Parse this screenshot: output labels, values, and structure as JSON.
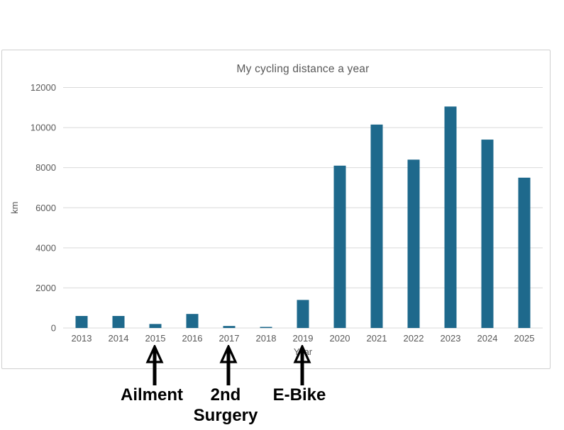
{
  "chart_data": {
    "type": "bar",
    "title": "My cycling distance a year",
    "xlabel": "Year",
    "ylabel": "km",
    "categories": [
      "2013",
      "2014",
      "2015",
      "2016",
      "2017",
      "2018",
      "2019",
      "2020",
      "2021",
      "2022",
      "2023",
      "2024",
      "2025"
    ],
    "values": [
      600,
      600,
      200,
      700,
      100,
      50,
      1400,
      8100,
      10150,
      8400,
      11050,
      9400,
      7500
    ],
    "ylim": [
      0,
      12000
    ],
    "yticks": [
      0,
      2000,
      4000,
      6000,
      8000,
      10000,
      12000
    ],
    "grid": true,
    "legend": "none",
    "colors": {
      "bar": "#1e698c",
      "gridline": "#d9d9d9",
      "axis_text": "#595959",
      "panel_border": "#cfcfcf",
      "annotation_text": "#000000"
    },
    "annotations": [
      {
        "target_category": "2015",
        "lines": [
          "Ailment"
        ]
      },
      {
        "target_category": "2017",
        "lines": [
          "2nd",
          "Surgery"
        ]
      },
      {
        "target_category": "2019",
        "lines": [
          "E-Bike"
        ]
      }
    ]
  }
}
